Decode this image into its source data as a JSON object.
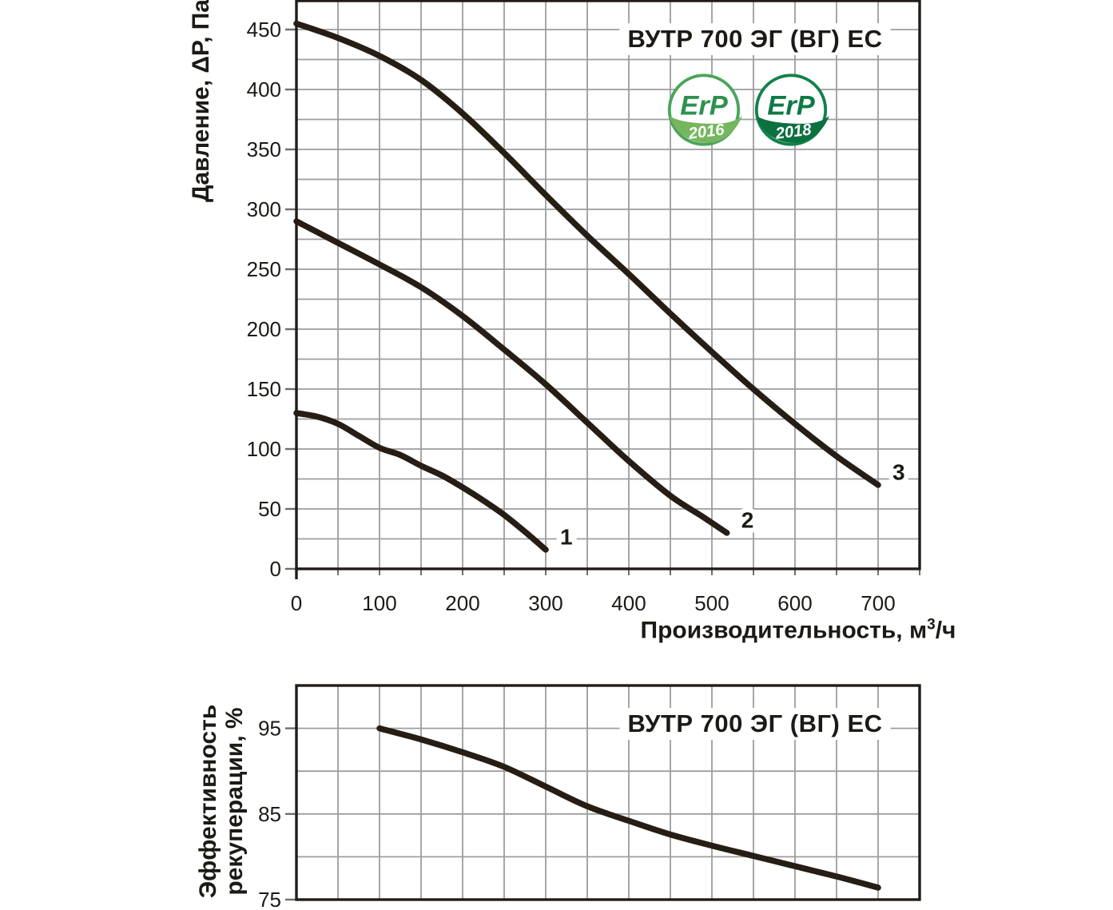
{
  "colors": {
    "curve": "#261d14",
    "grid": "#9d9d9d",
    "frame": "#211c17",
    "text": "#1d1a16",
    "tick": "#6e6e6e",
    "background": "#ffffff"
  },
  "chart_data": [
    {
      "type": "line",
      "title": "ВУТР 700 ЭГ (ВГ) ЕС",
      "ylabel": "Давление, ΔP, Па",
      "xlabel": {
        "main": "Производительность, м",
        "sup": "3",
        "tail": "/ч"
      },
      "xlim": [
        0,
        750
      ],
      "ylim": [
        0,
        474
      ],
      "grid": "on",
      "grid_step_x": 50,
      "grid_step_y": 25,
      "x_ticks": [
        0,
        100,
        200,
        300,
        400,
        500,
        600,
        700
      ],
      "y_ticks": [
        0,
        50,
        100,
        150,
        200,
        250,
        300,
        350,
        400,
        450
      ],
      "series": [
        {
          "name": "1",
          "points": [
            [
              0,
              130
            ],
            [
              25,
              127
            ],
            [
              50,
              121
            ],
            [
              75,
              111
            ],
            [
              100,
              101
            ],
            [
              125,
              95
            ],
            [
              150,
              86
            ],
            [
              175,
              78
            ],
            [
              200,
              68
            ],
            [
              225,
              57
            ],
            [
              250,
              45
            ],
            [
              275,
              31
            ],
            [
              300,
              16
            ]
          ]
        },
        {
          "name": "2",
          "points": [
            [
              0,
              290
            ],
            [
              50,
              272
            ],
            [
              100,
              254
            ],
            [
              150,
              235
            ],
            [
              200,
              211
            ],
            [
              250,
              183
            ],
            [
              300,
              154
            ],
            [
              350,
              122
            ],
            [
              400,
              90
            ],
            [
              450,
              61
            ],
            [
              490,
              43
            ],
            [
              518,
              30
            ]
          ]
        },
        {
          "name": "3",
          "points": [
            [
              0,
              455
            ],
            [
              50,
              443
            ],
            [
              100,
              428
            ],
            [
              150,
              408
            ],
            [
              200,
              380
            ],
            [
              250,
              347
            ],
            [
              300,
              312
            ],
            [
              350,
              278
            ],
            [
              400,
              246
            ],
            [
              450,
              213
            ],
            [
              500,
              181
            ],
            [
              550,
              150
            ],
            [
              600,
              121
            ],
            [
              650,
              94
            ],
            [
              700,
              70
            ]
          ]
        }
      ],
      "badges": [
        {
          "label": "ErP",
          "year": "2016",
          "ring": "#4aa55a",
          "color": "#2e9150",
          "leaf": "#76b65e"
        },
        {
          "label": "ErP",
          "year": "2018",
          "ring": "#11814b",
          "color": "#0d7a45",
          "leaf": "#0c7041"
        }
      ]
    },
    {
      "type": "line",
      "title": "ВУТР 700 ЭГ (ВГ) ЕС",
      "ylabel_lines": [
        "Эффективность",
        "рекуперации, %"
      ],
      "xlim": [
        0,
        750
      ],
      "ylim": [
        75,
        100
      ],
      "grid": "on",
      "grid_step_x": 50,
      "grid_step_y": 5,
      "x_ticks": [],
      "y_ticks": [
        75,
        85,
        95
      ],
      "series": [
        {
          "name": "",
          "points": [
            [
              100,
              95
            ],
            [
              150,
              93.7
            ],
            [
              200,
              92.2
            ],
            [
              250,
              90.5
            ],
            [
              300,
              88.2
            ],
            [
              350,
              85.9
            ],
            [
              400,
              84.2
            ],
            [
              450,
              82.6
            ],
            [
              500,
              81.3
            ],
            [
              550,
              80.1
            ],
            [
              600,
              78.9
            ],
            [
              650,
              77.7
            ],
            [
              700,
              76.4
            ]
          ]
        }
      ]
    }
  ]
}
